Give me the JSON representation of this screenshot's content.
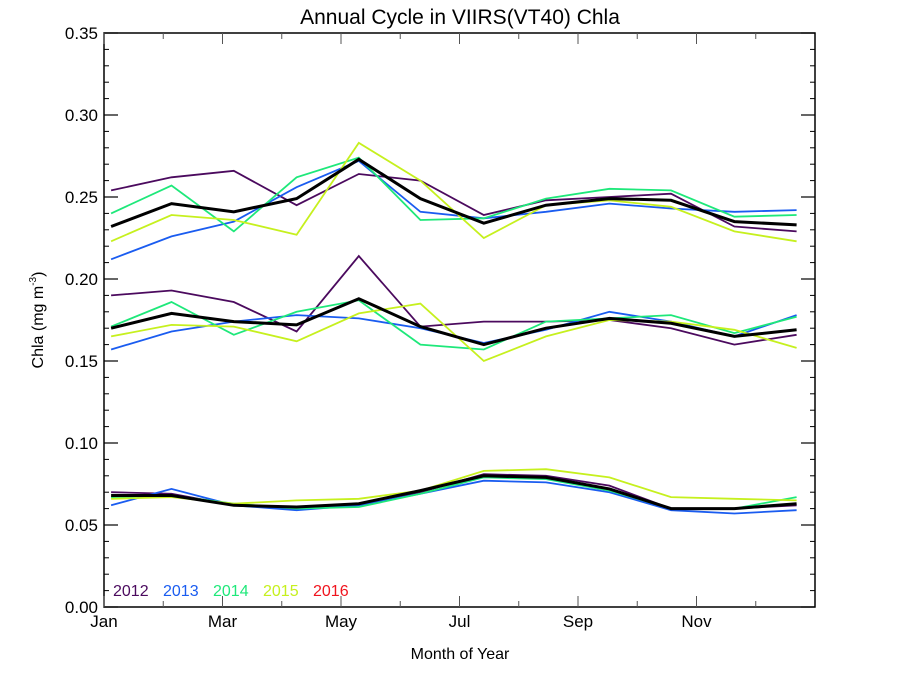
{
  "chart_data": {
    "type": "line",
    "title": "Annual Cycle in VIIRS(VT40) Chla",
    "xlabel": "Month of Year",
    "ylabel": "Chla (mg m",
    "ylabel_superscript": "-3",
    "ylabel_close": ")",
    "xlim": [
      1,
      13
    ],
    "ylim": [
      0,
      0.35
    ],
    "x_ticks": [
      {
        "value": 1,
        "label": "Jan"
      },
      {
        "value": 3,
        "label": "Mar"
      },
      {
        "value": 5,
        "label": "May"
      },
      {
        "value": 7,
        "label": "Jul"
      },
      {
        "value": 9,
        "label": "Sep"
      },
      {
        "value": 11,
        "label": "Nov"
      }
    ],
    "x_minor_ticks": [
      2,
      4,
      6,
      8,
      10,
      12
    ],
    "y_ticks": [
      {
        "value": 0.0,
        "label": "0.00"
      },
      {
        "value": 0.05,
        "label": "0.05"
      },
      {
        "value": 0.1,
        "label": "0.10"
      },
      {
        "value": 0.15,
        "label": "0.15"
      },
      {
        "value": 0.2,
        "label": "0.20"
      },
      {
        "value": 0.25,
        "label": "0.25"
      },
      {
        "value": 0.3,
        "label": "0.30"
      },
      {
        "value": 0.35,
        "label": "0.35"
      }
    ],
    "y_minor_step": 0.01,
    "grid": false,
    "legend_placement": "bottom-left",
    "legend": [
      {
        "label": "2012",
        "color": "#4b0a5e"
      },
      {
        "label": "2013",
        "color": "#1a5cf0"
      },
      {
        "label": "2014",
        "color": "#1ee87a"
      },
      {
        "label": "2015",
        "color": "#c6f01e"
      },
      {
        "label": "2016",
        "color": "#f0141e"
      }
    ],
    "x": [
      1.12,
      2.14,
      3.19,
      4.25,
      5.3,
      6.34,
      7.41,
      8.46,
      9.53,
      10.57,
      11.64,
      12.69
    ],
    "series": [
      {
        "name": "2012 high",
        "group": "high",
        "year": "2012",
        "color": "#4b0a5e",
        "values": [
          0.254,
          0.262,
          0.266,
          0.245,
          0.264,
          0.26,
          0.239,
          0.248,
          0.25,
          0.252,
          0.232,
          0.229
        ]
      },
      {
        "name": "2013 high",
        "group": "high",
        "year": "2013",
        "color": "#1a5cf0",
        "values": [
          0.212,
          0.226,
          0.235,
          0.256,
          0.272,
          0.241,
          0.237,
          0.241,
          0.246,
          0.243,
          0.241,
          0.242
        ]
      },
      {
        "name": "2014 high",
        "group": "high",
        "year": "2014",
        "color": "#1ee87a",
        "values": [
          0.24,
          0.257,
          0.229,
          0.262,
          0.274,
          0.236,
          0.237,
          0.249,
          0.255,
          0.254,
          0.238,
          0.239
        ]
      },
      {
        "name": "2015 high",
        "group": "high",
        "year": "2015",
        "color": "#c6f01e",
        "values": [
          0.223,
          0.239,
          0.236,
          0.227,
          0.283,
          0.26,
          0.225,
          0.245,
          0.248,
          0.244,
          0.229,
          0.223
        ]
      },
      {
        "name": "mean high",
        "group": "high",
        "year": "mean",
        "color": "#000000",
        "values": [
          0.232,
          0.246,
          0.241,
          0.249,
          0.273,
          0.249,
          0.234,
          0.245,
          0.249,
          0.248,
          0.235,
          0.233
        ]
      },
      {
        "name": "2012 mid",
        "group": "mid",
        "year": "2012",
        "color": "#4b0a5e",
        "values": [
          0.19,
          0.193,
          0.186,
          0.168,
          0.214,
          0.171,
          0.174,
          0.174,
          0.175,
          0.17,
          0.16,
          0.166
        ]
      },
      {
        "name": "2013 mid",
        "group": "mid",
        "year": "2013",
        "color": "#1a5cf0",
        "values": [
          0.157,
          0.168,
          0.174,
          0.178,
          0.176,
          0.17,
          0.161,
          0.169,
          0.18,
          0.174,
          0.165,
          0.178
        ]
      },
      {
        "name": "2014 mid",
        "group": "mid",
        "year": "2014",
        "color": "#1ee87a",
        "values": [
          0.171,
          0.186,
          0.166,
          0.18,
          0.187,
          0.16,
          0.157,
          0.174,
          0.176,
          0.178,
          0.167,
          0.177
        ]
      },
      {
        "name": "2015 mid",
        "group": "mid",
        "year": "2015",
        "color": "#c6f01e",
        "values": [
          0.165,
          0.172,
          0.171,
          0.162,
          0.179,
          0.185,
          0.15,
          0.165,
          0.175,
          0.174,
          0.169,
          0.158
        ]
      },
      {
        "name": "mean mid",
        "group": "mid",
        "year": "mean",
        "color": "#000000",
        "values": [
          0.17,
          0.179,
          0.174,
          0.172,
          0.188,
          0.171,
          0.16,
          0.17,
          0.176,
          0.173,
          0.165,
          0.169
        ]
      },
      {
        "name": "2012 low",
        "group": "low",
        "year": "2012",
        "color": "#4b0a5e",
        "values": [
          0.07,
          0.069,
          0.062,
          0.06,
          0.063,
          0.07,
          0.081,
          0.08,
          0.074,
          0.06,
          0.06,
          0.062
        ]
      },
      {
        "name": "2013 low",
        "group": "low",
        "year": "2013",
        "color": "#1a5cf0",
        "values": [
          0.062,
          0.072,
          0.062,
          0.059,
          0.062,
          0.069,
          0.077,
          0.076,
          0.07,
          0.059,
          0.057,
          0.059
        ]
      },
      {
        "name": "2014 low",
        "group": "low",
        "year": "2014",
        "color": "#1ee87a",
        "values": [
          0.067,
          0.068,
          0.063,
          0.06,
          0.061,
          0.069,
          0.079,
          0.078,
          0.071,
          0.06,
          0.06,
          0.067
        ]
      },
      {
        "name": "2015 low",
        "group": "low",
        "year": "2015",
        "color": "#c6f01e",
        "values": [
          0.066,
          0.067,
          0.063,
          0.065,
          0.066,
          0.071,
          0.083,
          0.084,
          0.079,
          0.067,
          0.066,
          0.065
        ]
      },
      {
        "name": "mean low",
        "group": "low",
        "year": "mean",
        "color": "#000000",
        "values": [
          0.068,
          0.068,
          0.062,
          0.061,
          0.063,
          0.071,
          0.08,
          0.079,
          0.072,
          0.06,
          0.06,
          0.063
        ]
      }
    ]
  }
}
